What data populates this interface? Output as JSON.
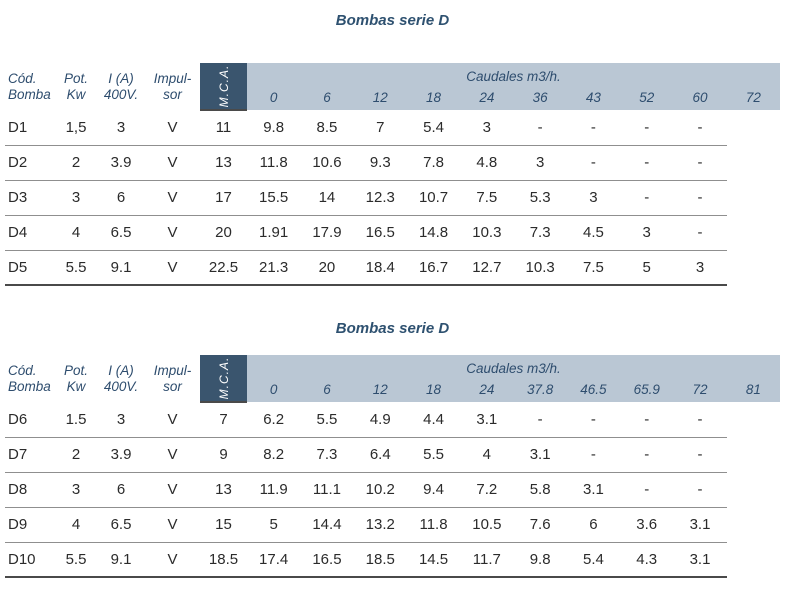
{
  "colors": {
    "title_text": "#2e5170",
    "header_text": "#2e4d6e",
    "band_bg": "#bac7d4",
    "mca_bg": "#3a556e",
    "mca_text": "#ffffff",
    "data_text": "#2b2b2b",
    "row_divider": "#8f8f8f",
    "table_bottom_border": "#4a4a4a"
  },
  "tables": [
    {
      "title": "Bombas serie D",
      "left_headers": [
        {
          "line1": "Cód.",
          "line2": "Bomba"
        },
        {
          "line1": "Pot.",
          "line2": "Kw"
        },
        {
          "line1": "I (A)",
          "line2": "400V."
        },
        {
          "line1": "Impul-",
          "line2": "sor"
        }
      ],
      "mca_label": "M.C.A.",
      "caudales_label": "Caudales m3/h.",
      "flow_columns": [
        "0",
        "6",
        "12",
        "18",
        "24",
        "36",
        "43",
        "52",
        "60",
        "72"
      ],
      "rows": [
        {
          "code": "D1",
          "pot": "1,5",
          "ia": "3",
          "imp": "V",
          "values": [
            "11",
            "9.8",
            "8.5",
            "7",
            "5.4",
            "3",
            "-",
            "-",
            "-",
            "-"
          ]
        },
        {
          "code": "D2",
          "pot": "2",
          "ia": "3.9",
          "imp": "V",
          "values": [
            "13",
            "11.8",
            "10.6",
            "9.3",
            "7.8",
            "4.8",
            "3",
            "-",
            "-",
            "-"
          ]
        },
        {
          "code": "D3",
          "pot": "3",
          "ia": "6",
          "imp": "V",
          "values": [
            "17",
            "15.5",
            "14",
            "12.3",
            "10.7",
            "7.5",
            "5.3",
            "3",
            "-",
            "-"
          ]
        },
        {
          "code": "D4",
          "pot": "4",
          "ia": "6.5",
          "imp": "V",
          "values": [
            "20",
            "1.91",
            "17.9",
            "16.5",
            "14.8",
            "10.3",
            "7.3",
            "4.5",
            "3",
            "-"
          ]
        },
        {
          "code": "D5",
          "pot": "5.5",
          "ia": "9.1",
          "imp": "V",
          "values": [
            "22.5",
            "21.3",
            "20",
            "18.4",
            "16.7",
            "12.7",
            "10.3",
            "7.5",
            "5",
            "3"
          ]
        }
      ]
    },
    {
      "title": "Bombas serie D",
      "left_headers": [
        {
          "line1": "Cód.",
          "line2": "Bomba"
        },
        {
          "line1": "Pot.",
          "line2": "Kw"
        },
        {
          "line1": "I (A)",
          "line2": "400V."
        },
        {
          "line1": "Impul-",
          "line2": "sor"
        }
      ],
      "mca_label": "M.C.A.",
      "caudales_label": "Caudales m3/h.",
      "flow_columns": [
        "0",
        "6",
        "12",
        "18",
        "24",
        "37.8",
        "46.5",
        "65.9",
        "72",
        "81"
      ],
      "rows": [
        {
          "code": "D6",
          "pot": "1.5",
          "ia": "3",
          "imp": "V",
          "values": [
            "7",
            "6.2",
            "5.5",
            "4.9",
            "4.4",
            "3.1",
            "-",
            "-",
            "-",
            "-"
          ]
        },
        {
          "code": "D7",
          "pot": "2",
          "ia": "3.9",
          "imp": "V",
          "values": [
            "9",
            "8.2",
            "7.3",
            "6.4",
            "5.5",
            "4",
            "3.1",
            "-",
            "-",
            "-"
          ]
        },
        {
          "code": "D8",
          "pot": "3",
          "ia": "6",
          "imp": "V",
          "values": [
            "13",
            "11.9",
            "11.1",
            "10.2",
            "9.4",
            "7.2",
            "5.8",
            "3.1",
            "-",
            "-"
          ]
        },
        {
          "code": "D9",
          "pot": "4",
          "ia": "6.5",
          "imp": "V",
          "values": [
            "15",
            "5",
            "14.4",
            "13.2",
            "11.8",
            "10.5",
            "7.6",
            "6",
            "3.6",
            "3.1"
          ]
        },
        {
          "code": "D10",
          "pot": "5.5",
          "ia": "9.1",
          "imp": "V",
          "values": [
            "18.5",
            "17.4",
            "16.5",
            "18.5",
            "14.5",
            "11.7",
            "9.8",
            "5.4",
            "4.3",
            "3.1"
          ]
        }
      ]
    }
  ]
}
